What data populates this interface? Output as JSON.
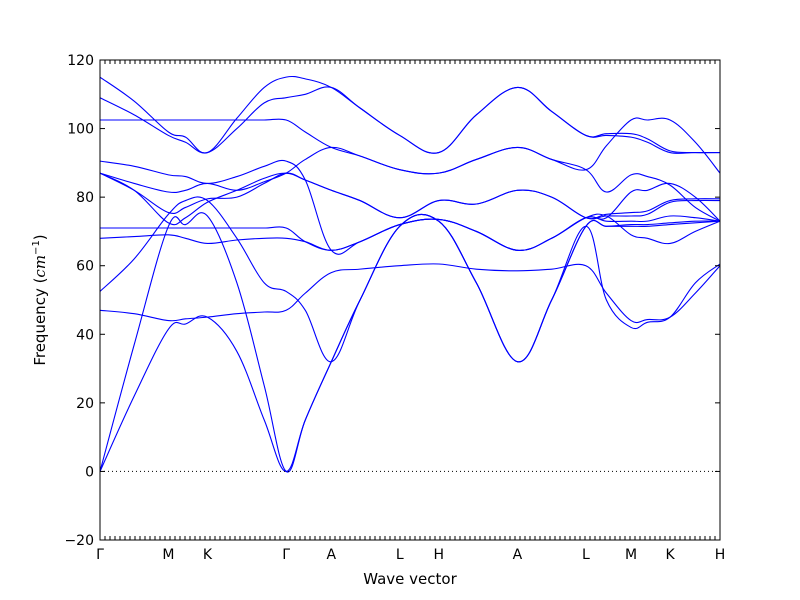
{
  "chart_data": {
    "type": "line",
    "title": "",
    "xlabel": "Wave vector",
    "ylabel_text": "Frequency (",
    "ylabel_unit": "cm",
    "ylabel_exp": "−1",
    "ylabel_close": ")",
    "ylim": [
      -20,
      120
    ],
    "yticks": [
      -20,
      0,
      20,
      40,
      60,
      80,
      100,
      120
    ],
    "xlim": [
      0,
      9.06
    ],
    "high_symmetry_points": [
      {
        "label": "Γ",
        "x": 0
      },
      {
        "label": "M",
        "x": 1.0
      },
      {
        "label": "K",
        "x": 1.57
      },
      {
        "label": "Γ",
        "x": 2.72
      },
      {
        "label": "A",
        "x": 3.38
      },
      {
        "label": "L",
        "x": 4.38
      },
      {
        "label": "H",
        "x": 4.95
      },
      {
        "label": "A",
        "x": 6.1
      },
      {
        "label": "L",
        "x": 7.1
      },
      {
        "label": "M",
        "x": 7.76
      },
      {
        "label": "K",
        "x": 8.33
      },
      {
        "label": "H",
        "x": 9.06
      }
    ],
    "line_color": "#0000ff",
    "grid": false,
    "zero_line": true,
    "series": [
      {
        "x": [
          0,
          0.5,
          1.0,
          1.25,
          1.57,
          2.0,
          2.4,
          2.72,
          3.0,
          3.38,
          3.8,
          4.38,
          4.95,
          5.5,
          6.1,
          6.6,
          7.1,
          7.4,
          7.76,
          8.0,
          8.33,
          8.7,
          9.06
        ],
        "y": [
          0,
          22,
          41.5,
          43,
          45,
          35,
          15,
          0,
          15,
          32,
          50,
          71.5,
          73,
          55,
          32,
          50,
          71.5,
          71.5,
          71.5,
          71.5,
          72,
          72.5,
          73
        ]
      },
      {
        "x": [
          0,
          0.5,
          1.0,
          1.25,
          1.57,
          2.0,
          2.4,
          2.72,
          3.0,
          3.38,
          3.8,
          4.38,
          4.95,
          5.5,
          6.1,
          6.6,
          7.1,
          7.4,
          7.76,
          8.0,
          8.33,
          8.7,
          9.06
        ],
        "y": [
          0,
          37,
          71.5,
          72,
          74.5,
          55,
          25,
          0,
          15,
          32,
          50,
          71.5,
          73,
          55,
          32,
          50,
          71.5,
          71.5,
          72,
          72,
          72.5,
          73,
          73
        ]
      },
      {
        "x": [
          0,
          0.5,
          1.0,
          1.25,
          1.57,
          2.0,
          2.4,
          2.72,
          3.0,
          3.38,
          3.8,
          4.38,
          4.95,
          5.5,
          6.1,
          6.6,
          7.1,
          7.4,
          7.76,
          8.0,
          8.33,
          8.7,
          9.06
        ],
        "y": [
          47,
          46,
          44,
          44.5,
          45,
          46,
          46.5,
          47,
          52,
          58,
          59,
          60,
          60.5,
          59,
          58.5,
          59,
          60,
          52,
          44,
          44.3,
          45,
          52,
          60
        ]
      },
      {
        "x": [
          0,
          0.5,
          1.0,
          1.25,
          1.57,
          2.0,
          2.4,
          2.72,
          3.0,
          3.38,
          3.8,
          4.38,
          4.95,
          5.5,
          6.1,
          6.6,
          7.1,
          7.4,
          7.76,
          8.0,
          8.33,
          8.7,
          9.06
        ],
        "y": [
          52.5,
          62,
          75,
          79,
          79,
          68,
          55,
          52.5,
          47,
          32,
          50,
          71.5,
          73,
          55,
          32,
          50,
          71.5,
          50,
          42,
          43.5,
          45,
          55,
          60.5
        ]
      },
      {
        "x": [
          0,
          0.5,
          1.0,
          1.25,
          1.57,
          2.0,
          2.4,
          2.72,
          3.0,
          3.38,
          3.8,
          4.38,
          4.95,
          5.5,
          6.1,
          6.6,
          7.1,
          7.4,
          7.76,
          8.0,
          8.33,
          8.7,
          9.06
        ],
        "y": [
          68,
          68.5,
          69,
          68,
          66.5,
          67.5,
          68,
          68,
          67,
          64.5,
          67,
          72,
          73.5,
          70,
          64.5,
          68,
          74,
          74.5,
          69,
          68,
          66.5,
          70,
          73
        ]
      },
      {
        "x": [
          0,
          0.5,
          1.0,
          1.25,
          1.57,
          2.0,
          2.4,
          2.72,
          3.0,
          3.38,
          3.8,
          4.38,
          4.95,
          5.5,
          6.1,
          6.6,
          7.1,
          7.4,
          7.76,
          8.0,
          8.33,
          8.7,
          9.06
        ],
        "y": [
          71,
          71,
          71,
          71,
          71,
          71,
          71,
          71,
          67,
          64.5,
          67,
          72,
          73.5,
          70,
          64.5,
          68,
          74,
          73,
          73,
          73,
          74.5,
          74,
          73
        ]
      },
      {
        "x": [
          0,
          0.5,
          1.0,
          1.25,
          1.57,
          2.0,
          2.4,
          2.72,
          3.0,
          3.38,
          3.8,
          4.38,
          4.95,
          5.5,
          6.1,
          6.6,
          7.1,
          7.4,
          7.76,
          8.0,
          8.33,
          8.7,
          9.06
        ],
        "y": [
          87,
          82,
          75.5,
          77,
          79.5,
          80,
          84,
          87,
          85,
          82,
          79,
          74,
          79,
          78,
          82,
          80,
          74,
          75,
          75.5,
          76,
          79,
          79.5,
          79.5
        ]
      },
      {
        "x": [
          0,
          0.5,
          1.0,
          1.25,
          1.57,
          2.0,
          2.4,
          2.72,
          3.0,
          3.38,
          3.8,
          4.38,
          4.95,
          5.5,
          6.1,
          6.6,
          7.1,
          7.4,
          7.76,
          8.0,
          8.33,
          8.7,
          9.06
        ],
        "y": [
          87,
          82,
          72.5,
          74,
          78.5,
          82,
          85.5,
          87,
          85,
          82,
          79,
          74,
          79,
          78,
          82,
          80,
          74,
          74.5,
          74.5,
          75,
          78.5,
          79,
          79
        ]
      },
      {
        "x": [
          0,
          0.5,
          1.0,
          1.25,
          1.57,
          2.0,
          2.4,
          2.72,
          3.0,
          3.38,
          3.8,
          4.38,
          4.95,
          5.5,
          6.1,
          6.6,
          7.1,
          7.4,
          7.76,
          8.0,
          8.33,
          8.7,
          9.06
        ],
        "y": [
          90.5,
          89,
          86.5,
          86,
          84,
          86,
          89,
          90.5,
          85,
          64.5,
          67,
          72,
          73.5,
          70,
          64.5,
          68,
          74,
          74,
          81.5,
          82,
          84,
          80,
          73
        ]
      },
      {
        "x": [
          0,
          0.5,
          1.0,
          1.25,
          1.57,
          2.0,
          2.4,
          2.72,
          3.0,
          3.38,
          3.8,
          4.38,
          4.95,
          5.5,
          6.1,
          6.6,
          7.1,
          7.4,
          7.76,
          8.0,
          8.33,
          8.7,
          9.06
        ],
        "y": [
          87,
          84,
          81.5,
          82,
          84,
          82,
          84.5,
          87,
          91,
          94.5,
          92,
          88,
          87,
          91,
          94.5,
          91,
          88,
          81.5,
          86.5,
          86,
          83.5,
          77,
          73
        ]
      },
      {
        "x": [
          0,
          0.5,
          1.0,
          1.25,
          1.57,
          2.0,
          2.4,
          2.72,
          3.0,
          3.38,
          3.8,
          4.38,
          4.95,
          5.5,
          6.1,
          6.6,
          7.1,
          7.4,
          7.76,
          8.0,
          8.33,
          8.7,
          9.06
        ],
        "y": [
          102.5,
          102.5,
          102.5,
          102.5,
          102.5,
          102.5,
          102.5,
          102.5,
          99,
          94.5,
          92,
          88,
          87,
          91,
          94.5,
          91,
          88,
          95,
          102.5,
          102.5,
          102.5,
          96,
          87
        ]
      },
      {
        "x": [
          0,
          0.5,
          1.0,
          1.25,
          1.57,
          2.0,
          2.4,
          2.72,
          3.0,
          3.38,
          3.8,
          4.38,
          4.95,
          5.5,
          6.1,
          6.6,
          7.1,
          7.4,
          7.76,
          8.0,
          8.33,
          8.7,
          9.06
        ],
        "y": [
          109,
          104,
          98,
          96,
          93,
          100,
          107.5,
          109,
          110,
          112,
          106,
          98,
          93,
          104,
          112,
          105,
          98,
          98,
          97.5,
          96,
          93,
          93,
          93
        ]
      },
      {
        "x": [
          0,
          0.5,
          1.0,
          1.25,
          1.57,
          2.0,
          2.4,
          2.72,
          3.0,
          3.38,
          3.8,
          4.38,
          4.95,
          5.5,
          6.1,
          6.6,
          7.1,
          7.4,
          7.76,
          8.0,
          8.33,
          8.7,
          9.06
        ],
        "y": [
          115,
          108,
          99,
          97.5,
          93,
          103,
          112,
          115,
          114.5,
          112,
          106,
          98,
          93,
          104,
          112,
          105,
          98,
          98.5,
          98.5,
          97,
          93.5,
          93,
          93
        ]
      }
    ]
  }
}
